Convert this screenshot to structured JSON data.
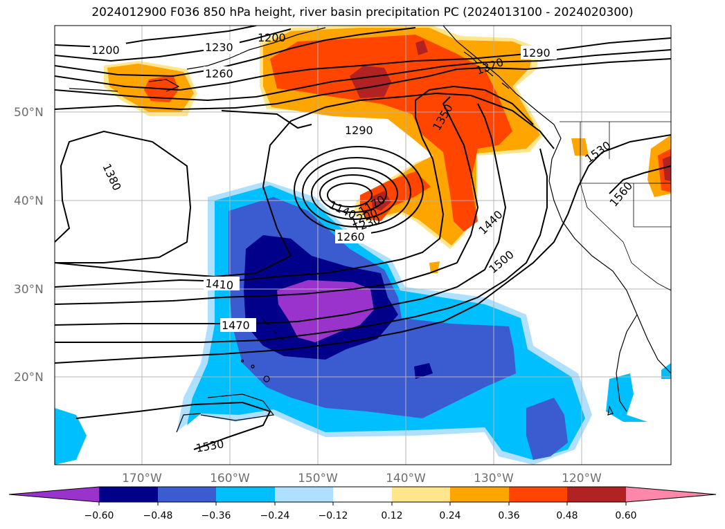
{
  "title": "2024012900 F036 850 hPa height, river basin precipitation PC (2024013100 - 2024020300)",
  "map": {
    "latitude_labels": [
      "50°N",
      "40°N",
      "30°N",
      "20°N"
    ],
    "longitude_labels": [
      "170°W",
      "160°W",
      "150°W",
      "140°W",
      "130°W",
      "120°W"
    ],
    "contour_labels": [
      "1200",
      "1230",
      "1260",
      "1200",
      "1290",
      "1320",
      "1350",
      "1290",
      "1380",
      "1140",
      "1170",
      "1200",
      "1230",
      "1260",
      "1410",
      "1440",
      "1470",
      "1500",
      "1530",
      "1560",
      "1530"
    ]
  },
  "colorbar": {
    "tick_labels": [
      "−0.60",
      "−0.48",
      "−0.36",
      "−0.24",
      "−0.12",
      "0.12",
      "0.24",
      "0.36",
      "0.48",
      "0.60"
    ],
    "colors": [
      "#9933cc",
      "#00008b",
      "#3b5bd1",
      "#00bfff",
      "#b0e0ff",
      "#ffffff",
      "#ffe68c",
      "#ffa500",
      "#ff4500",
      "#b22222",
      "#ff88aa"
    ]
  }
}
